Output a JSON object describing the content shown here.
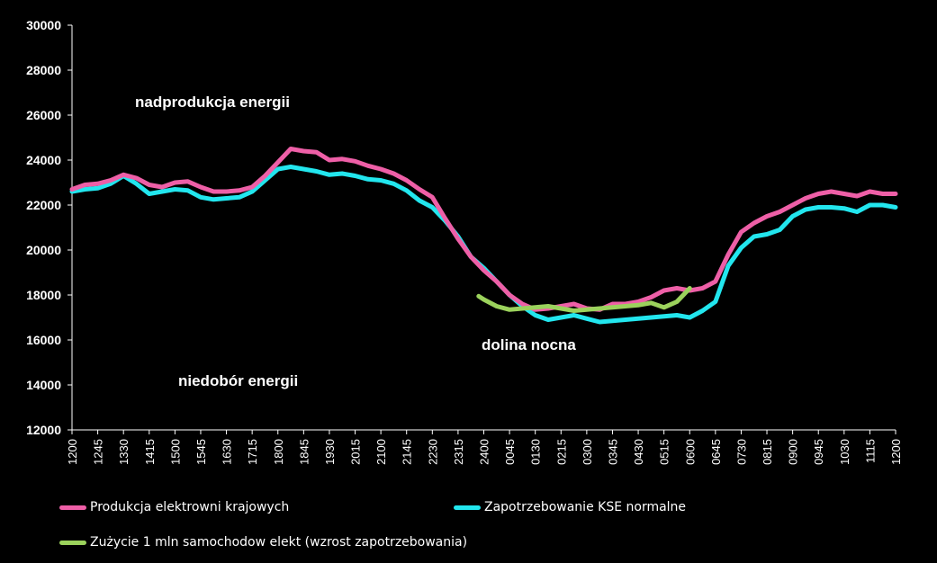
{
  "chart_data": {
    "type": "line",
    "title": "",
    "xlabel": "",
    "ylabel": "",
    "ylim": [
      12000,
      30000
    ],
    "yticks": [
      12000,
      14000,
      16000,
      18000,
      20000,
      22000,
      24000,
      26000,
      28000,
      30000
    ],
    "x_tick_labels": [
      "1200",
      "1245",
      "1330",
      "1415",
      "1500",
      "1545",
      "1630",
      "1715",
      "1800",
      "1845",
      "1930",
      "2015",
      "2100",
      "2145",
      "2230",
      "2315",
      "2400",
      "0045",
      "0130",
      "0215",
      "0300",
      "0345",
      "0430",
      "0515",
      "0600",
      "0645",
      "0730",
      "0815",
      "0900",
      "0945",
      "1030",
      "1115",
      "1200"
    ],
    "grid": false,
    "legend_position": "bottom",
    "annotations": [
      {
        "text": "nadprodukcja energii"
      },
      {
        "text": "niedobór energii"
      },
      {
        "text": "dolina nocna"
      }
    ],
    "series": [
      {
        "name": "Produkcja elektrowni krajowych",
        "color": "#ee5fa7",
        "x": [
          0,
          0.5,
          1,
          1.5,
          2,
          2.5,
          3,
          3.5,
          4,
          4.5,
          5,
          5.5,
          6,
          6.5,
          7,
          7.5,
          8,
          8.5,
          9,
          9.5,
          10,
          10.5,
          11,
          11.5,
          12,
          12.5,
          13,
          13.5,
          14,
          14.5,
          15,
          15.5,
          16,
          16.5,
          17,
          17.5,
          18,
          18.5,
          19,
          19.5,
          20,
          20.5,
          21,
          21.5,
          22,
          22.5,
          23,
          23.5,
          24,
          24.5,
          25,
          25.5,
          26,
          26.5,
          27,
          27.5,
          28,
          28.5,
          29,
          29.5,
          30,
          30.5,
          31,
          31.5,
          32
        ],
        "values": [
          22700,
          22900,
          22950,
          23100,
          23350,
          23200,
          22900,
          22800,
          23000,
          23050,
          22800,
          22600,
          22600,
          22650,
          22800,
          23300,
          23900,
          24500,
          24400,
          24350,
          24000,
          24050,
          23950,
          23750,
          23600,
          23400,
          23100,
          22700,
          22350,
          21400,
          20500,
          19700,
          19100,
          18600,
          18000,
          17600,
          17350,
          17400,
          17500,
          17600,
          17400,
          17350,
          17600,
          17600,
          17700,
          17900,
          18200,
          18300,
          18200,
          18300,
          18600,
          19800,
          20800,
          21200,
          21500,
          21700,
          22000,
          22300,
          22500,
          22600,
          22500,
          22400,
          22600,
          22500,
          22500
        ]
      },
      {
        "name": "Zapotrzebowanie KSE normalne",
        "color": "#22e6ee",
        "x": [
          0,
          0.5,
          1,
          1.5,
          2,
          2.5,
          3,
          3.5,
          4,
          4.5,
          5,
          5.5,
          6,
          6.5,
          7,
          7.5,
          8,
          8.5,
          9,
          9.5,
          10,
          10.5,
          11,
          11.5,
          12,
          12.5,
          13,
          13.5,
          14,
          14.5,
          15,
          15.5,
          16,
          16.5,
          17,
          17.5,
          18,
          18.5,
          19,
          19.5,
          20,
          20.5,
          21,
          21.5,
          22,
          22.5,
          23,
          23.5,
          24,
          24.5,
          25,
          25.5,
          26,
          26.5,
          27,
          27.5,
          28,
          28.5,
          29,
          29.5,
          30,
          30.5,
          31,
          31.5,
          32
        ],
        "values": [
          22600,
          22700,
          22750,
          22950,
          23300,
          22950,
          22500,
          22600,
          22700,
          22650,
          22350,
          22250,
          22300,
          22350,
          22600,
          23100,
          23600,
          23700,
          23600,
          23500,
          23350,
          23400,
          23300,
          23150,
          23100,
          22950,
          22650,
          22200,
          21900,
          21300,
          20600,
          19700,
          19200,
          18600,
          18000,
          17500,
          17100,
          16900,
          17000,
          17100,
          16950,
          16800,
          16850,
          16900,
          16950,
          17000,
          17050,
          17100,
          17000,
          17300,
          17700,
          19300,
          20100,
          20600,
          20700,
          20900,
          21500,
          21800,
          21900,
          21900,
          21850,
          21700,
          22000,
          22000,
          21900
        ]
      },
      {
        "name": "Zużycie 1 mln samochodow elekt (wzrost zapotrzebowania)",
        "color": "#9bd25c",
        "x": [
          15.8,
          16,
          16.5,
          17,
          17.5,
          18,
          18.5,
          19,
          19.5,
          20,
          20.5,
          21,
          21.5,
          22,
          22.5,
          23,
          23.5,
          24
        ],
        "values": [
          17950,
          17800,
          17500,
          17350,
          17400,
          17450,
          17500,
          17400,
          17300,
          17350,
          17400,
          17450,
          17500,
          17550,
          17650,
          17450,
          17700,
          18300
        ]
      }
    ]
  }
}
